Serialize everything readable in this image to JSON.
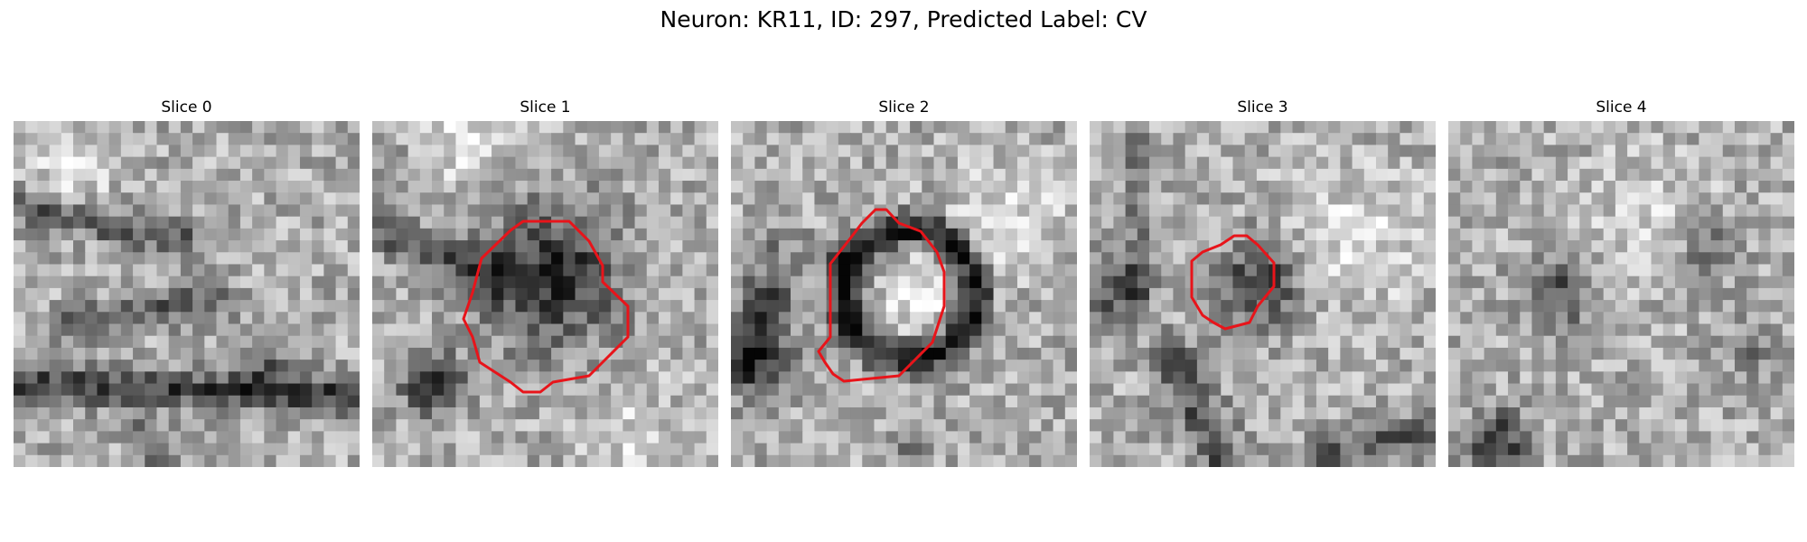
{
  "figure": {
    "title": "Neuron: KR11, ID: 297, Predicted Label: CV"
  },
  "colors": {
    "background": "#ffffff",
    "contour": "#e8141a",
    "image_colormap": "grayscale"
  },
  "panels": [
    {
      "title": "Slice 0",
      "has_contour": false
    },
    {
      "title": "Slice 1",
      "has_contour": true
    },
    {
      "title": "Slice 2",
      "has_contour": true
    },
    {
      "title": "Slice 3",
      "has_contour": true
    },
    {
      "title": "Slice 4",
      "has_contour": false
    }
  ]
}
